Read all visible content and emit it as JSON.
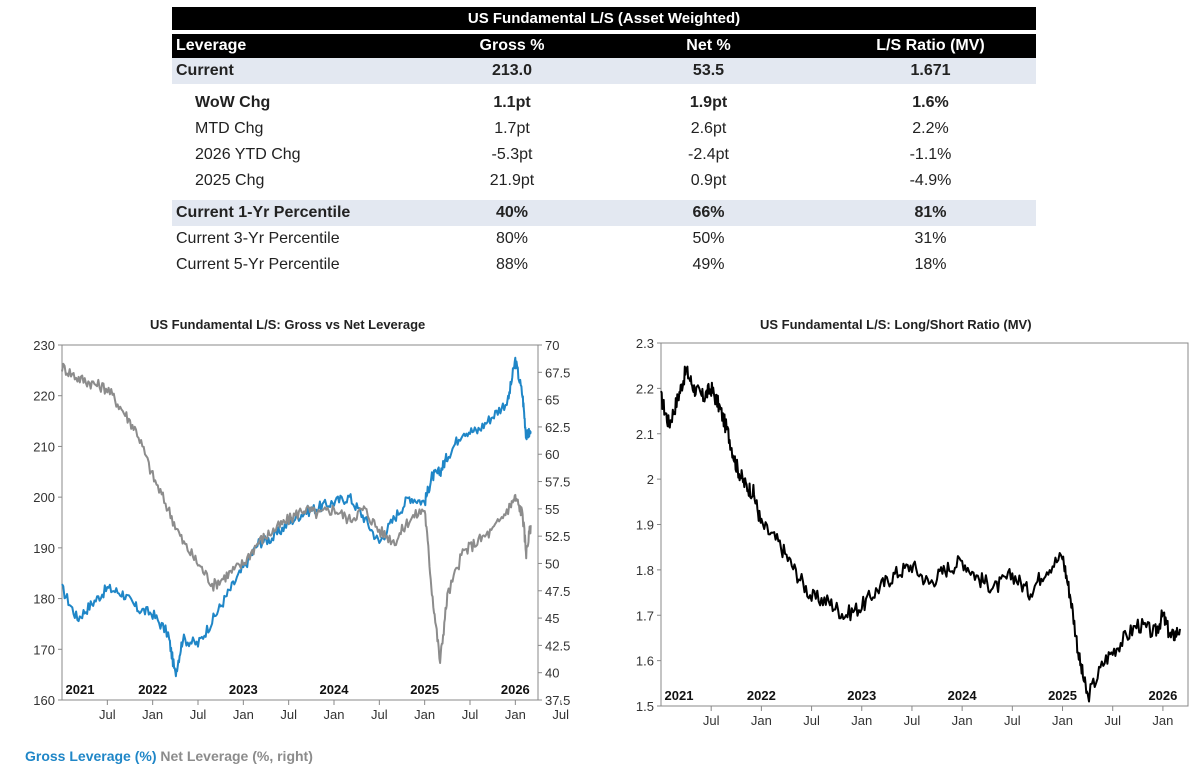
{
  "table": {
    "title": "US Fundamental L/S (Asset Weighted)",
    "headers": [
      "Leverage",
      "Gross %",
      "Net %",
      "L/S Ratio (MV)"
    ],
    "rows": [
      {
        "label": "Current",
        "gross": "213.0",
        "net": "53.5",
        "ratio": "1.671"
      },
      {
        "label": "WoW Chg",
        "gross": "1.1pt",
        "net": "1.9pt",
        "ratio": "1.6%"
      },
      {
        "label": "MTD Chg",
        "gross": "1.7pt",
        "net": "2.6pt",
        "ratio": "2.2%"
      },
      {
        "label": "2026 YTD Chg",
        "gross": "-5.3pt",
        "net": "-2.4pt",
        "ratio": "-1.1%"
      },
      {
        "label": "2025 Chg",
        "gross": "21.9pt",
        "net": "0.9pt",
        "ratio": "-4.9%"
      },
      {
        "label": "Current 1-Yr Percentile",
        "gross": "40%",
        "net": "66%",
        "ratio": "81%"
      },
      {
        "label": "Current 3-Yr Percentile",
        "gross": "80%",
        "net": "50%",
        "ratio": "31%"
      },
      {
        "label": "Current 5-Yr Percentile",
        "gross": "88%",
        "net": "49%",
        "ratio": "18%"
      }
    ],
    "negative_color": "#a0243a",
    "shade_color": "#e3e8f1"
  },
  "chart_data": [
    {
      "type": "line",
      "title": "US Fundamental L/S: Gross vs Net Leverage",
      "ylim": [
        160,
        230
      ],
      "yticks": [
        "230",
        "220",
        "210",
        "200",
        "190",
        "180",
        "170",
        "160"
      ],
      "y2lim": [
        37.5,
        70
      ],
      "y2ticks": [
        "70",
        "67.5",
        "65",
        "62.5",
        "60",
        "57.5",
        "55",
        "52.5",
        "50",
        "47.5",
        "45",
        "42.5",
        "40",
        "37.5"
      ],
      "xlim": [
        2021.0,
        2026.25
      ],
      "month_ticks": [
        "Jul",
        "Jan",
        "Jul",
        "Jan",
        "Jul",
        "Jan",
        "Jul",
        "Jan",
        "Jul",
        "Jan",
        "Jul",
        "Jan"
      ],
      "year_labels": [
        "2021",
        "2022",
        "2023",
        "2024",
        "2025",
        "2026"
      ],
      "legend": [
        {
          "name": "Gross Leverage (%)",
          "color": "#1f86c7"
        },
        {
          "name": "Net Leverage (%, right)",
          "color": "#8c8c8c"
        }
      ],
      "series": [
        {
          "name": "Gross Leverage (%)",
          "axis": "left",
          "color": "#1f86c7",
          "x": [
            2021.0,
            2021.17,
            2021.33,
            2021.5,
            2021.67,
            2021.83,
            2022.0,
            2022.17,
            2022.25,
            2022.33,
            2022.5,
            2022.67,
            2022.83,
            2023.0,
            2023.17,
            2023.33,
            2023.5,
            2023.67,
            2023.83,
            2024.0,
            2024.17,
            2024.33,
            2024.5,
            2024.67,
            2024.83,
            2025.0,
            2025.08,
            2025.17,
            2025.25,
            2025.42,
            2025.58,
            2025.75,
            2025.92,
            2026.0,
            2026.08,
            2026.12,
            2026.17
          ],
          "y": [
            182,
            176,
            179,
            182,
            181,
            178,
            177,
            173,
            165,
            172,
            171,
            176,
            181,
            186,
            191,
            192,
            195,
            197,
            198,
            199,
            200,
            196,
            191,
            196,
            200,
            199,
            204,
            205,
            208,
            213,
            213,
            216,
            219,
            227,
            220,
            212,
            213
          ]
        },
        {
          "name": "Net Leverage (%, right)",
          "axis": "right",
          "color": "#8c8c8c",
          "x": [
            2021.0,
            2021.17,
            2021.33,
            2021.5,
            2021.67,
            2021.83,
            2022.0,
            2022.17,
            2022.33,
            2022.5,
            2022.67,
            2022.83,
            2023.0,
            2023.17,
            2023.33,
            2023.5,
            2023.67,
            2023.83,
            2024.0,
            2024.17,
            2024.33,
            2024.5,
            2024.67,
            2024.83,
            2025.0,
            2025.08,
            2025.17,
            2025.25,
            2025.42,
            2025.58,
            2025.75,
            2025.92,
            2026.0,
            2026.08,
            2026.12,
            2026.17
          ],
          "y": [
            68,
            67,
            66.5,
            66,
            64,
            62,
            58,
            55,
            52,
            50,
            48,
            49,
            50,
            52,
            53,
            54,
            55,
            54.5,
            55,
            54,
            55,
            53,
            52,
            54,
            55,
            47.5,
            41,
            47,
            51,
            52,
            53,
            55,
            56,
            54.5,
            51,
            53.5
          ]
        }
      ]
    },
    {
      "type": "line",
      "title": "US Fundamental L/S: Long/Short Ratio (MV)",
      "ylim": [
        1.5,
        2.3
      ],
      "yticks": [
        "2.3",
        "2.2",
        "2.1",
        "2",
        "1.9",
        "1.8",
        "1.7",
        "1.6",
        "1.5"
      ],
      "xlim": [
        2021.0,
        2026.25
      ],
      "month_ticks": [
        "Jul",
        "Jan",
        "Jul",
        "Jan",
        "Jul",
        "Jan",
        "Jul",
        "Jan",
        "Jul",
        "Jan",
        "Jul",
        "Jan"
      ],
      "year_labels": [
        "2021",
        "2022",
        "2023",
        "2024",
        "2025",
        "2026"
      ],
      "series": [
        {
          "color": "#000000",
          "x": [
            2021.0,
            2021.08,
            2021.17,
            2021.25,
            2021.33,
            2021.42,
            2021.5,
            2021.58,
            2021.67,
            2021.75,
            2021.83,
            2021.92,
            2022.0,
            2022.17,
            2022.33,
            2022.5,
            2022.67,
            2022.83,
            2023.0,
            2023.17,
            2023.33,
            2023.5,
            2023.67,
            2023.83,
            2024.0,
            2024.17,
            2024.33,
            2024.5,
            2024.67,
            2024.83,
            2025.0,
            2025.08,
            2025.17,
            2025.25,
            2025.42,
            2025.58,
            2025.75,
            2025.92,
            2026.0,
            2026.08,
            2026.17
          ],
          "y": [
            2.18,
            2.12,
            2.18,
            2.24,
            2.2,
            2.18,
            2.2,
            2.16,
            2.1,
            2.03,
            1.99,
            1.97,
            1.9,
            1.86,
            1.8,
            1.74,
            1.73,
            1.7,
            1.72,
            1.76,
            1.79,
            1.81,
            1.77,
            1.8,
            1.82,
            1.78,
            1.76,
            1.79,
            1.75,
            1.8,
            1.83,
            1.74,
            1.6,
            1.52,
            1.6,
            1.64,
            1.68,
            1.66,
            1.7,
            1.65,
            1.67
          ]
        }
      ]
    }
  ]
}
